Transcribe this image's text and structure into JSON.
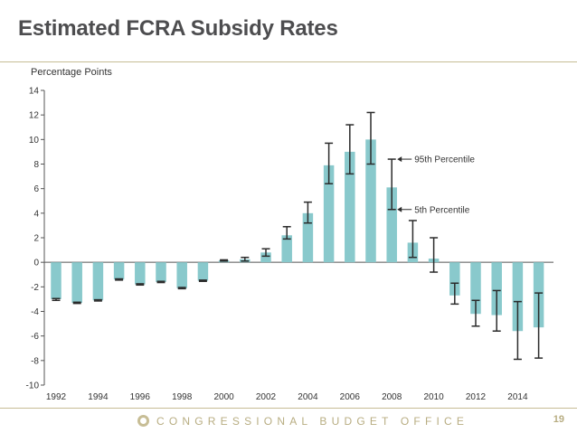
{
  "slide": {
    "title": "Estimated FCRA Subsidy Rates",
    "footer_org": "CONGRESSIONAL BUDGET OFFICE",
    "page_number": "19"
  },
  "colors": {
    "bar": "#89c9cc",
    "error_bar": "#2b2b2b",
    "axis": "#555555",
    "title": "#4d4d4f",
    "footer_accent": "#c7bd95"
  },
  "chart_data": {
    "type": "bar",
    "title": "",
    "xlabel": "",
    "ylabel": "Percentage Points",
    "ylim": [
      -10,
      14
    ],
    "yticks": [
      -10,
      -8,
      -6,
      -4,
      -2,
      0,
      2,
      4,
      6,
      8,
      10,
      12,
      14
    ],
    "grid": false,
    "x": [
      1992,
      1993,
      1994,
      1995,
      1996,
      1997,
      1998,
      1999,
      2000,
      2001,
      2002,
      2003,
      2004,
      2005,
      2006,
      2007,
      2008,
      2009,
      2010,
      2011,
      2012,
      2013,
      2014,
      2015
    ],
    "x_tick_labels": [
      "1992",
      "1994",
      "1996",
      "1998",
      "2000",
      "2002",
      "2004",
      "2006",
      "2008",
      "2010",
      "2012",
      "2014"
    ],
    "values": [
      -3.0,
      -3.3,
      -3.1,
      -1.4,
      -1.8,
      -1.6,
      -2.1,
      -1.5,
      0.15,
      0.25,
      0.8,
      2.2,
      4.0,
      7.9,
      9.0,
      10.0,
      6.1,
      1.6,
      0.3,
      -2.7,
      -4.2,
      -4.3,
      -5.6,
      -5.3
    ],
    "percentile_5": [
      -3.1,
      -3.35,
      -3.15,
      -1.45,
      -1.85,
      -1.65,
      -2.15,
      -1.55,
      0.1,
      0.1,
      0.5,
      1.9,
      3.2,
      6.4,
      7.2,
      8.0,
      4.3,
      0.4,
      -0.8,
      -3.4,
      -5.2,
      -5.6,
      -7.9,
      -7.8
    ],
    "percentile_95": [
      -2.95,
      -3.25,
      -3.05,
      -1.35,
      -1.75,
      -1.55,
      -2.05,
      -1.45,
      0.2,
      0.4,
      1.1,
      2.9,
      4.9,
      9.7,
      11.2,
      12.2,
      8.4,
      3.4,
      2.0,
      -1.7,
      -3.1,
      -2.3,
      -3.2,
      -2.5
    ],
    "annotations": [
      {
        "text": "95th Percentile",
        "year": 2008,
        "value": 8.4
      },
      {
        "text": "5th Percentile",
        "year": 2008,
        "value": 4.3
      }
    ]
  }
}
